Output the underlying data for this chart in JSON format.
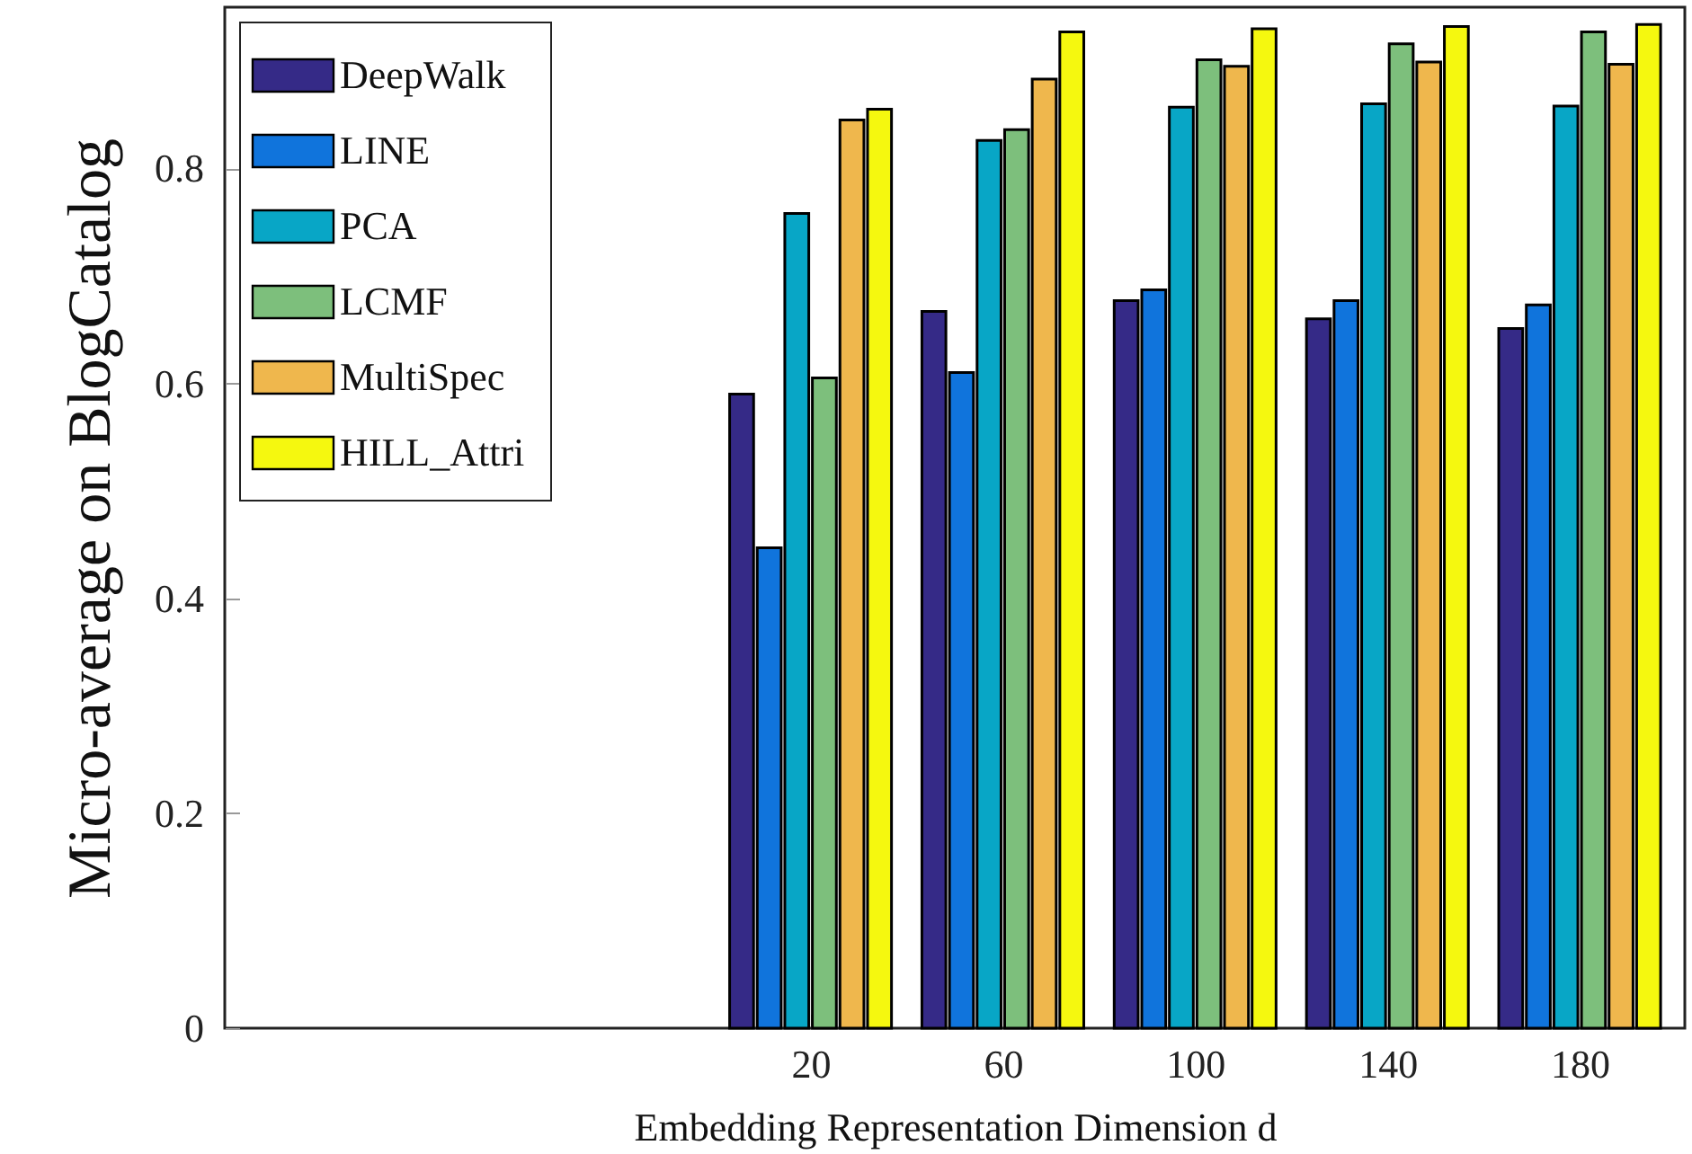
{
  "chart_data": {
    "type": "bar",
    "xlabel": "Embedding Representation Dimension d",
    "ylabel": "Micro-average on BlogCatalog",
    "x": [
      20,
      60,
      100,
      140,
      180
    ],
    "xlim": [
      -100,
      200
    ],
    "xticks": [
      20,
      60,
      100,
      140,
      180
    ],
    "ylim": [
      0,
      0.95
    ],
    "yticks": [
      0,
      0.2,
      0.4,
      0.6,
      0.8
    ],
    "grid": false,
    "legend": "top left",
    "series": [
      {
        "name": "DeepWalk",
        "color": "#352a87",
        "values": [
          0.59,
          0.667,
          0.677,
          0.66,
          0.651
        ]
      },
      {
        "name": "LINE",
        "color": "#1074dc",
        "values": [
          0.447,
          0.61,
          0.687,
          0.677,
          0.673
        ]
      },
      {
        "name": "PCA",
        "color": "#08a6c6",
        "values": [
          0.758,
          0.826,
          0.857,
          0.86,
          0.858
        ]
      },
      {
        "name": "LCMF",
        "color": "#7dbf7c",
        "values": [
          0.605,
          0.836,
          0.901,
          0.916,
          0.927
        ]
      },
      {
        "name": "MultiSpec",
        "color": "#efb74d",
        "values": [
          0.845,
          0.883,
          0.895,
          0.899,
          0.897
        ]
      },
      {
        "name": "HILL_Attri",
        "color": "#f5f80f",
        "values": [
          0.855,
          0.927,
          0.93,
          0.932,
          0.934
        ]
      }
    ]
  }
}
